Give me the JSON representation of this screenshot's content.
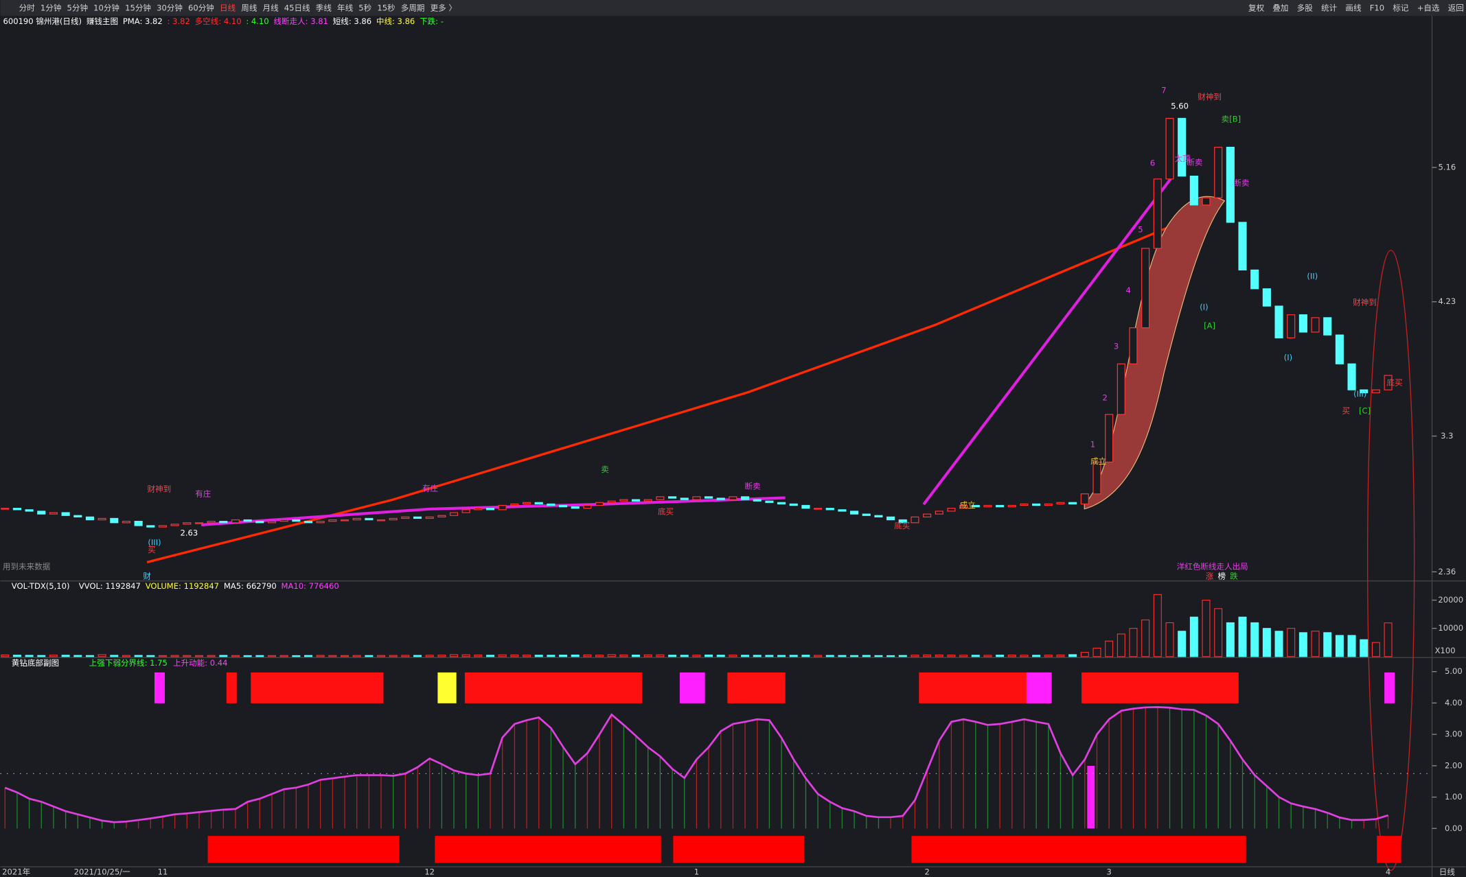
{
  "toolbar": {
    "periods": [
      "分时",
      "1分钟",
      "5分钟",
      "10分钟",
      "15分钟",
      "30分钟",
      "60分钟",
      "日线",
      "周线",
      "月线",
      "45日线",
      "季线",
      "年线",
      "5秒",
      "15秒",
      "多周期",
      "更多 〉"
    ],
    "tools": [
      "复权",
      "叠加",
      "多股",
      "统计",
      "画线",
      "F10",
      "标记",
      "+自选",
      "返回"
    ]
  },
  "info": [
    "600190 锦州港(日线)",
    "赚钱主图",
    "PMA: 3.82",
    ": 3.82",
    "多空线: 4.10",
    ": 4.10",
    "线断走人: 3.81",
    "短线: 3.86",
    "中线: 3.86",
    "下跌: -"
  ],
  "period_label": "日线",
  "chart_data": [
    {
      "type": "candlestick",
      "categories": [
        "2021年",
        null,
        null,
        null,
        null,
        null,
        null,
        null,
        "2021/10/25/一",
        null,
        null,
        null,
        null,
        "11",
        null,
        null,
        null,
        null,
        null,
        null,
        null,
        null,
        null,
        null,
        null,
        null,
        null,
        null,
        null,
        null,
        null,
        null,
        null,
        null,
        null,
        "12",
        null,
        null,
        null,
        null,
        null,
        null,
        null,
        null,
        null,
        null,
        null,
        null,
        null,
        null,
        null,
        null,
        null,
        null,
        null,
        null,
        null,
        "1",
        null,
        null,
        null,
        null,
        null,
        null,
        null,
        null,
        null,
        null,
        null,
        null,
        null,
        null,
        null,
        null,
        null,
        null,
        "2",
        null,
        null,
        null,
        null,
        null,
        null,
        null,
        null,
        null,
        null,
        null,
        null,
        null,
        null,
        "3",
        null,
        null,
        null,
        null,
        null,
        null,
        null,
        null,
        null,
        null,
        null,
        null,
        null,
        null,
        null,
        null,
        null,
        null,
        null,
        null,
        null,
        null,
        "4"
      ],
      "values": [
        2.8,
        2.79,
        2.78,
        2.76,
        2.77,
        2.75,
        2.74,
        2.72,
        2.73,
        2.7,
        2.71,
        2.68,
        2.67,
        2.68,
        2.69,
        2.7,
        2.7,
        2.71,
        2.7,
        2.72,
        2.71,
        2.7,
        2.71,
        2.72,
        2.71,
        2.7,
        2.71,
        2.72,
        2.72,
        2.73,
        2.72,
        2.72,
        2.73,
        2.74,
        2.73,
        2.74,
        2.75,
        2.77,
        2.79,
        2.8,
        2.79,
        2.82,
        2.83,
        2.84,
        2.83,
        2.82,
        2.81,
        2.8,
        2.82,
        2.84,
        2.85,
        2.86,
        2.85,
        2.86,
        2.88,
        2.87,
        2.86,
        2.88,
        2.87,
        2.86,
        2.88,
        2.86,
        2.85,
        2.84,
        2.83,
        2.82,
        2.8,
        2.8,
        2.79,
        2.78,
        2.76,
        2.75,
        2.74,
        2.72,
        2.7,
        2.74,
        2.76,
        2.78,
        2.8,
        2.82,
        2.81,
        2.82,
        2.81,
        2.82,
        2.83,
        2.82,
        2.83,
        2.84,
        2.83,
        2.9,
        3.12,
        3.45,
        3.8,
        4.05,
        4.6,
        5.08,
        5.5,
        5.1,
        4.9,
        4.95,
        5.3,
        4.78,
        4.45,
        4.32,
        4.2,
        3.98,
        4.14,
        4.02,
        4.12,
        4.0,
        3.8,
        3.62,
        3.6,
        3.62,
        3.72
      ],
      "up_color": "#ff3232",
      "down_color": "#54ffff",
      "ylim": [
        2.31,
        6.19
      ],
      "yticks": [
        5.16,
        4.23,
        3.3,
        2.36
      ],
      "annotations": [
        "财神到",
        "有庄",
        "有庄",
        "卖",
        "断卖",
        "底买",
        "底买",
        "成立",
        "成立",
        "1",
        "2",
        "3",
        "4",
        "5",
        "6",
        "7",
        "5.60",
        "2.63",
        "财神到",
        "卖[B]",
        "太顶",
        "断卖",
        "断卖",
        "(II)",
        "(I)",
        "[A]",
        "(I)",
        "财神到",
        "底买",
        "(III)",
        "买",
        "[C]",
        "(III)",
        "买",
        "财",
        "用到未来数据",
        "洋红色断线走人出局",
        "涨",
        "榜",
        "跌"
      ]
    },
    {
      "type": "bar",
      "title": "VOL-TDX(5,10)",
      "legend": [
        "VVOL: 1192847",
        "VOLUME: 1192847",
        "MA5: 662790",
        "MA10: 776460"
      ],
      "unit_label": "X100",
      "values": [
        600,
        500,
        450,
        400,
        520,
        480,
        420,
        380,
        700,
        450,
        400,
        420,
        380,
        350,
        400,
        380,
        360,
        390,
        420,
        380,
        350,
        370,
        360,
        380,
        340,
        400,
        420,
        380,
        360,
        400,
        380,
        390,
        410,
        450,
        420,
        480,
        520,
        700,
        650,
        560,
        480,
        620,
        580,
        540,
        500,
        480,
        520,
        560,
        600,
        520,
        700,
        580,
        540,
        600,
        620,
        500,
        480,
        520,
        560,
        500,
        540,
        480,
        460,
        440,
        420,
        460,
        500,
        440,
        420,
        400,
        380,
        420,
        360,
        340,
        400,
        520,
        600,
        560,
        540,
        500,
        480,
        460,
        520,
        540,
        500,
        480,
        520,
        560,
        700,
        1500,
        3000,
        5500,
        8000,
        10000,
        13000,
        22000,
        12000,
        9000,
        14000,
        20000,
        17000,
        12000,
        14000,
        12000,
        10000,
        9000,
        10000,
        8500,
        9000,
        8500,
        7500,
        7500,
        6000,
        5000,
        11928
      ],
      "ylim": [
        0,
        23500
      ],
      "yticks": [
        10000,
        20000
      ]
    },
    {
      "type": "line",
      "title": "黄钻底部副图",
      "legend": [
        "上强下弱分界线: 1.75",
        "上升动能: 0.44"
      ],
      "threshold": 1.75,
      "color": "#e040e0",
      "values": [
        1.3,
        1.15,
        0.95,
        0.85,
        0.7,
        0.55,
        0.45,
        0.35,
        0.25,
        0.2,
        0.22,
        0.27,
        0.32,
        0.38,
        0.45,
        0.48,
        0.52,
        0.56,
        0.6,
        0.62,
        0.85,
        0.95,
        1.1,
        1.25,
        1.3,
        1.4,
        1.55,
        1.6,
        1.65,
        1.7,
        1.7,
        1.7,
        1.68,
        1.75,
        1.95,
        2.23,
        2.05,
        1.85,
        1.75,
        1.7,
        1.75,
        2.9,
        3.33,
        3.45,
        3.54,
        3.2,
        2.6,
        2.05,
        2.4,
        3.0,
        3.63,
        3.3,
        2.95,
        2.59,
        2.3,
        1.9,
        1.61,
        2.2,
        2.59,
        3.1,
        3.33,
        3.4,
        3.48,
        3.45,
        2.89,
        2.2,
        1.6,
        1.1,
        0.85,
        0.65,
        0.55,
        0.4,
        0.36,
        0.36,
        0.4,
        0.9,
        1.85,
        2.8,
        3.4,
        3.48,
        3.4,
        3.3,
        3.33,
        3.4,
        3.48,
        3.4,
        3.33,
        2.4,
        1.7,
        2.2,
        3.0,
        3.48,
        3.75,
        3.82,
        3.86,
        3.87,
        3.85,
        3.8,
        3.78,
        3.6,
        3.33,
        2.8,
        2.2,
        1.7,
        1.35,
        1.0,
        0.8,
        0.7,
        0.62,
        0.5,
        0.35,
        0.27,
        0.27,
        0.3,
        0.42
      ],
      "ylim": [
        -1.22,
        5.36
      ],
      "yticks": [
        {
          "value": 5,
          "label": "5.00"
        },
        {
          "value": 4,
          "label": "4.00"
        },
        {
          "value": 3,
          "label": "3.00"
        },
        {
          "value": 2,
          "label": "2.00"
        },
        {
          "value": 1,
          "label": "1.00"
        },
        {
          "value": 0,
          "label": "0.00"
        }
      ]
    }
  ]
}
